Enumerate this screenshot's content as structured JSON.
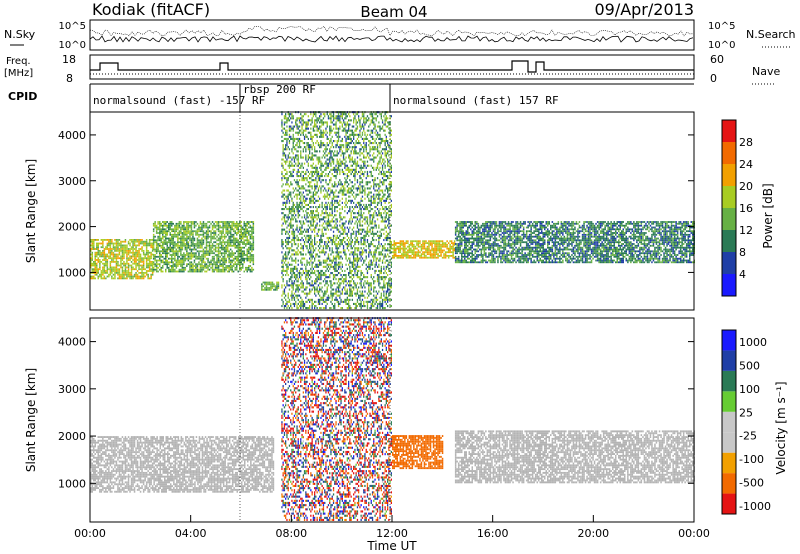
{
  "header": {
    "station": "Kodiak (fitACF)",
    "beam": "Beam 04",
    "date": "09/Apr/2013"
  },
  "noise_panel": {
    "left_label": "N.Sky",
    "right_label": "N.Search",
    "left_ticks": [
      "10^5",
      "10^0"
    ],
    "right_ticks": [
      "10^5",
      "10^0"
    ]
  },
  "freq_panel": {
    "left_label_line1": "Freq.",
    "left_label_line2": "[MHz]",
    "right_label": "Nave",
    "left_ticks": [
      "18",
      "8"
    ],
    "right_ticks": [
      "60",
      "0"
    ]
  },
  "cpid": {
    "label": "CPID",
    "segments": [
      "normalsound (fast) -157 RF",
      "rbsp 200 RF",
      "normalsound (fast) 157 RF"
    ]
  },
  "colors": {
    "power_scale": [
      "#1a1aff",
      "#1f3fa6",
      "#2a7a55",
      "#66b044",
      "#a8cc22",
      "#f2a000",
      "#f26a00",
      "#e51414"
    ],
    "velocity_scale": [
      "#e51414",
      "#f26a00",
      "#f2a000",
      "#c8c8c8",
      "#c8c8c8",
      "#66cc33",
      "#2a7a55",
      "#1f3fa6",
      "#1a1aff"
    ],
    "ground_scatter": "#b4b4b4"
  },
  "chart_data": [
    {
      "type": "heatmap",
      "name": "power",
      "xlabel": "",
      "ylabel": "Slant Range [km]",
      "xlim": [
        "00:00",
        "24:00"
      ],
      "ylim": [
        180,
        4500
      ],
      "x_ticks": [
        "00:00",
        "04:00",
        "08:00",
        "12:00",
        "16:00",
        "20:00",
        "00:00"
      ],
      "y_ticks": [
        1000,
        2000,
        3000,
        4000
      ],
      "colorbar": {
        "label": "Power [dB]",
        "range": [
          0,
          32
        ],
        "ticks": [
          4,
          8,
          12,
          16,
          20,
          24,
          28
        ]
      },
      "features": [
        {
          "start_hr": 0.0,
          "end_hr": 2.5,
          "range_km": [
            850,
            1700
          ],
          "level": 18
        },
        {
          "start_hr": 2.5,
          "end_hr": 6.5,
          "range_km": [
            1000,
            2100
          ],
          "level": 14
        },
        {
          "start_hr": 6.8,
          "end_hr": 7.5,
          "range_km": [
            600,
            800
          ],
          "level": 14
        },
        {
          "start_hr": 7.6,
          "end_hr": 12.0,
          "range_km": [
            200,
            4500
          ],
          "level": 14
        },
        {
          "start_hr": 12.0,
          "end_hr": 14.5,
          "range_km": [
            1300,
            1700
          ],
          "level": 20
        },
        {
          "start_hr": 14.5,
          "end_hr": 24.0,
          "range_km": [
            1200,
            2100
          ],
          "level": 10
        }
      ],
      "grid": false
    },
    {
      "type": "heatmap",
      "name": "velocity",
      "xlabel": "Time UT",
      "ylabel": "Slant Range [km]",
      "xlim": [
        "00:00",
        "24:00"
      ],
      "ylim": [
        180,
        4500
      ],
      "x_ticks": [
        "00:00",
        "04:00",
        "08:00",
        "12:00",
        "16:00",
        "20:00",
        "00:00"
      ],
      "y_ticks": [
        1000,
        2000,
        3000,
        4000
      ],
      "colorbar": {
        "label": "Velocity [m s⁻¹]",
        "range": [
          -1000,
          1000
        ],
        "ticks": [
          1000,
          500,
          100,
          25,
          -25,
          -100,
          -500,
          -1000
        ]
      },
      "features": [
        {
          "start_hr": 0.0,
          "end_hr": 7.3,
          "range_km": [
            800,
            2000
          ],
          "velocity": 0
        },
        {
          "start_hr": 7.6,
          "end_hr": 12.0,
          "range_km": [
            200,
            4500
          ],
          "velocity": 400
        },
        {
          "start_hr": 12.0,
          "end_hr": 14.0,
          "range_km": [
            1300,
            2000
          ],
          "velocity": -300
        },
        {
          "start_hr": 14.5,
          "end_hr": 24.0,
          "range_km": [
            1000,
            2100
          ],
          "velocity": 0
        }
      ],
      "grid": false
    }
  ]
}
